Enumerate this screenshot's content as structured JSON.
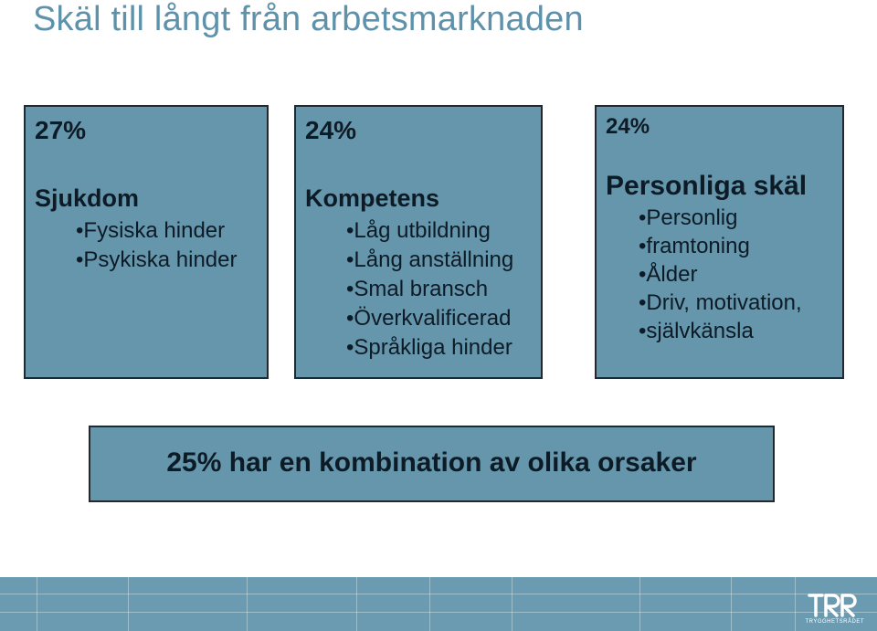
{
  "title": "Skäl till långt från arbetsmarknaden",
  "boxes": [
    {
      "percent": "27%",
      "heading": "Sjukdom",
      "bullets": [
        "Fysiska hinder",
        "Psykiska hinder"
      ]
    },
    {
      "percent": "24%",
      "heading": "Kompetens",
      "bullets": [
        "Låg utbildning",
        "Lång anställning",
        "Smal bransch",
        "Överkvalificerad",
        "Språkliga hinder"
      ]
    },
    {
      "percent": "24%",
      "heading": "Personliga skäl",
      "bullets": [
        "Personlig",
        "framtoning",
        "Ålder",
        "Driv, motivation,",
        "självkänsla"
      ]
    }
  ],
  "summary": "25% har en kombination av olika orsaker",
  "footer": {
    "logo_text": "TRYGGHETSRÅDET",
    "logo_icon": "trr-logo-icon"
  },
  "colors": {
    "title": "#5e92aa",
    "box_fill": "#6596ab",
    "footer": "#6b9bb1"
  }
}
